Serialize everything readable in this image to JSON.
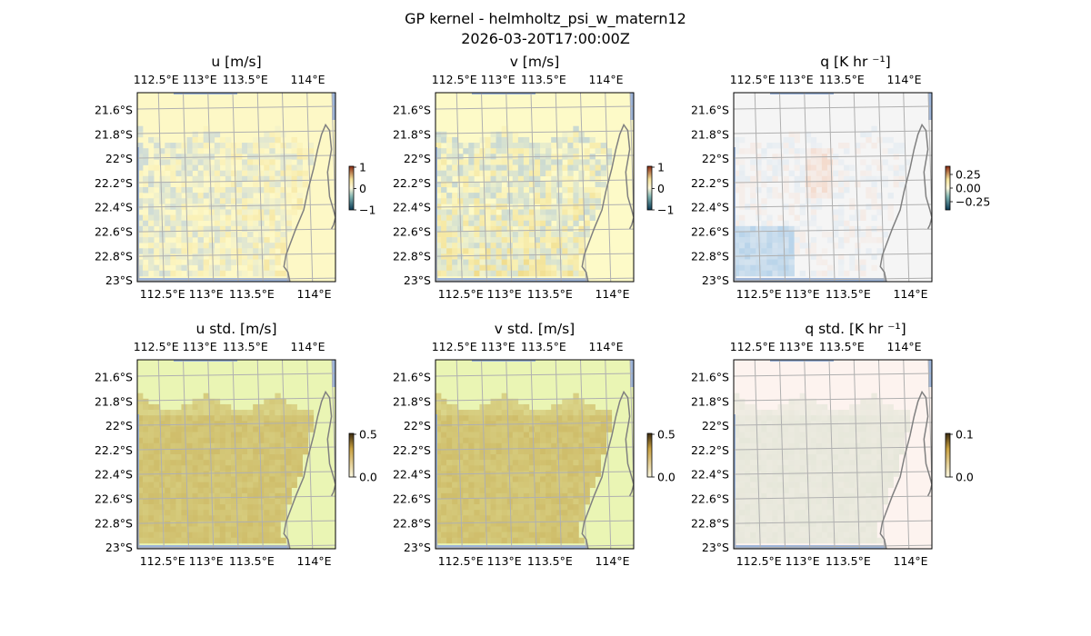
{
  "figure": {
    "title": "GP kernel - helmholtz_psi_w_matern12",
    "timestamp": "2026-03-20T17:00:00Z"
  },
  "chart_data": [
    {
      "type": "heatmap",
      "title": "u [m/s]",
      "xlim": [
        112.5,
        114.2
      ],
      "ylim": [
        -23.0,
        -21.5
      ],
      "x_ticks": [
        "112.5°E",
        "113°E",
        "113.5°E",
        "114°E"
      ],
      "y_ticks": [
        "21.6°S",
        "21.8°S",
        "22°S",
        "22.2°S",
        "22.4°S",
        "22.6°S",
        "22.8°S",
        "23°S"
      ],
      "colorbar": {
        "ticks": [
          "1",
          "0",
          "−1"
        ],
        "range": [
          -1,
          1
        ],
        "scheme": "diverging"
      },
      "grid": true,
      "field": "u"
    },
    {
      "type": "heatmap",
      "title": "v [m/s]",
      "xlim": [
        112.5,
        114.2
      ],
      "ylim": [
        -23.0,
        -21.5
      ],
      "x_ticks": [
        "112.5°E",
        "113°E",
        "113.5°E",
        "114°E"
      ],
      "y_ticks": [
        "21.6°S",
        "21.8°S",
        "22°S",
        "22.2°S",
        "22.4°S",
        "22.6°S",
        "22.8°S",
        "23°S"
      ],
      "colorbar": {
        "ticks": [
          "1",
          "0",
          "−1"
        ],
        "range": [
          -1,
          1
        ],
        "scheme": "diverging"
      },
      "grid": true,
      "field": "v"
    },
    {
      "type": "heatmap",
      "title": "q [K hr ⁻¹]",
      "xlim": [
        112.5,
        114.2
      ],
      "ylim": [
        -23.0,
        -21.5
      ],
      "x_ticks": [
        "112.5°E",
        "113°E",
        "113.5°E",
        "114°E"
      ],
      "y_ticks": [
        "21.6°S",
        "21.8°S",
        "22°S",
        "22.2°S",
        "22.4°S",
        "22.6°S",
        "22.8°S",
        "23°S"
      ],
      "colorbar": {
        "ticks": [
          "0.25",
          "0.00",
          "−0.25"
        ],
        "range": [
          -0.3,
          0.3
        ],
        "scheme": "diverging"
      },
      "grid": true,
      "field": "q"
    },
    {
      "type": "heatmap",
      "title": "u std. [m/s]",
      "xlim": [
        112.5,
        114.2
      ],
      "ylim": [
        -23.0,
        -21.5
      ],
      "x_ticks": [
        "112.5°E",
        "113°E",
        "113.5°E",
        "114°E"
      ],
      "y_ticks": [
        "21.6°S",
        "21.8°S",
        "22°S",
        "22.2°S",
        "22.4°S",
        "22.6°S",
        "22.8°S",
        "23°S"
      ],
      "colorbar": {
        "ticks": [
          "0.5",
          "0.0"
        ],
        "range": [
          0,
          0.5
        ],
        "scheme": "sequential"
      },
      "grid": true,
      "field": "u_std"
    },
    {
      "type": "heatmap",
      "title": "v std. [m/s]",
      "xlim": [
        112.5,
        114.2
      ],
      "ylim": [
        -23.0,
        -21.5
      ],
      "x_ticks": [
        "112.5°E",
        "113°E",
        "113.5°E",
        "114°E"
      ],
      "y_ticks": [
        "21.6°S",
        "21.8°S",
        "22°S",
        "22.2°S",
        "22.4°S",
        "22.6°S",
        "22.8°S",
        "23°S"
      ],
      "colorbar": {
        "ticks": [
          "0.5",
          "0.0"
        ],
        "range": [
          0,
          0.5
        ],
        "scheme": "sequential"
      },
      "grid": true,
      "field": "v_std"
    },
    {
      "type": "heatmap",
      "title": "q std. [K hr ⁻¹]",
      "xlim": [
        112.5,
        114.2
      ],
      "ylim": [
        -23.0,
        -21.5
      ],
      "x_ticks": [
        "112.5°E",
        "113°E",
        "113.5°E",
        "114°E"
      ],
      "y_ticks": [
        "21.6°S",
        "21.8°S",
        "22°S",
        "22.2°S",
        "22.4°S",
        "22.6°S",
        "22.8°S",
        "23°S"
      ],
      "colorbar": {
        "ticks": [
          "0.1",
          "0.0"
        ],
        "range": [
          0,
          0.1
        ],
        "scheme": "sequential"
      },
      "grid": true,
      "field": "q_std"
    }
  ],
  "colors": {
    "background": "#ffffff",
    "grid": "#b0b0b0",
    "coastline": "#808080",
    "border_water": "#9db4d8",
    "u_base": "#fdf8c6",
    "v_base": "#fdfac8",
    "q_base": "#f5f5f5",
    "std_base": "#eaf5b4",
    "std_high": "#cfbd6a",
    "q_std_base": "#fdf3ef",
    "q_std_high": "#e6e7da"
  }
}
